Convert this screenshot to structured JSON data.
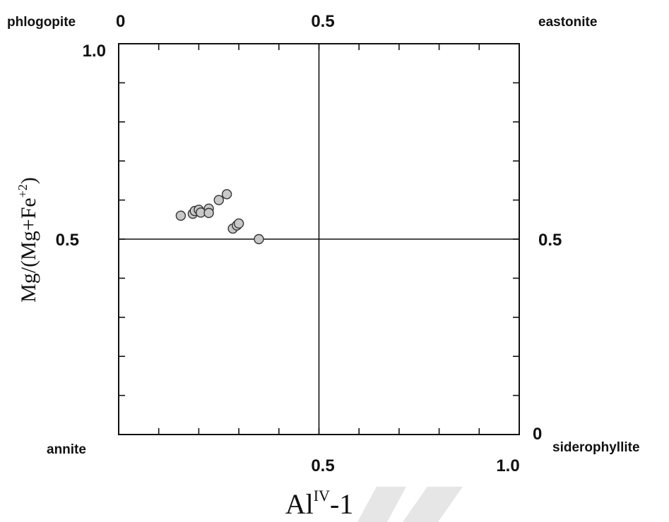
{
  "chart_data": {
    "type": "scatter",
    "xlabel": {
      "main": "Al",
      "superscript": "IV",
      "suffix": "-1"
    },
    "ylabel": {
      "main": "Mg/(Mg+Fe",
      "superscript": "+2",
      "suffix": ")"
    },
    "xlim": [
      0,
      1
    ],
    "ylim": [
      0,
      1
    ],
    "x_tick_labels": {
      "bottom_mid": "0.5",
      "bottom_end": "1.0",
      "top_start": "0",
      "top_mid": "0.5"
    },
    "y_tick_labels": {
      "left_top": "1.0",
      "left_mid": "0.5",
      "right_mid": "0.5",
      "right_bottom": "0"
    },
    "end_members": {
      "top_left": "phlogopite",
      "top_right": "eastonite",
      "bottom_left": "annite",
      "bottom_right": "siderophyllite"
    },
    "reference_lines": {
      "x": 0.5,
      "y": 0.5
    },
    "tick_count_per_axis": 9,
    "grid": false,
    "legend": "none",
    "point_color": "#c8c8c8",
    "series": [
      {
        "points": [
          {
            "x": 0.155,
            "y": 0.56
          },
          {
            "x": 0.185,
            "y": 0.565
          },
          {
            "x": 0.19,
            "y": 0.572
          },
          {
            "x": 0.2,
            "y": 0.575
          },
          {
            "x": 0.205,
            "y": 0.568
          },
          {
            "x": 0.225,
            "y": 0.578
          },
          {
            "x": 0.225,
            "y": 0.567
          },
          {
            "x": 0.25,
            "y": 0.6
          },
          {
            "x": 0.27,
            "y": 0.615
          },
          {
            "x": 0.285,
            "y": 0.527
          },
          {
            "x": 0.295,
            "y": 0.535
          },
          {
            "x": 0.3,
            "y": 0.54
          },
          {
            "x": 0.35,
            "y": 0.5
          }
        ]
      }
    ]
  }
}
